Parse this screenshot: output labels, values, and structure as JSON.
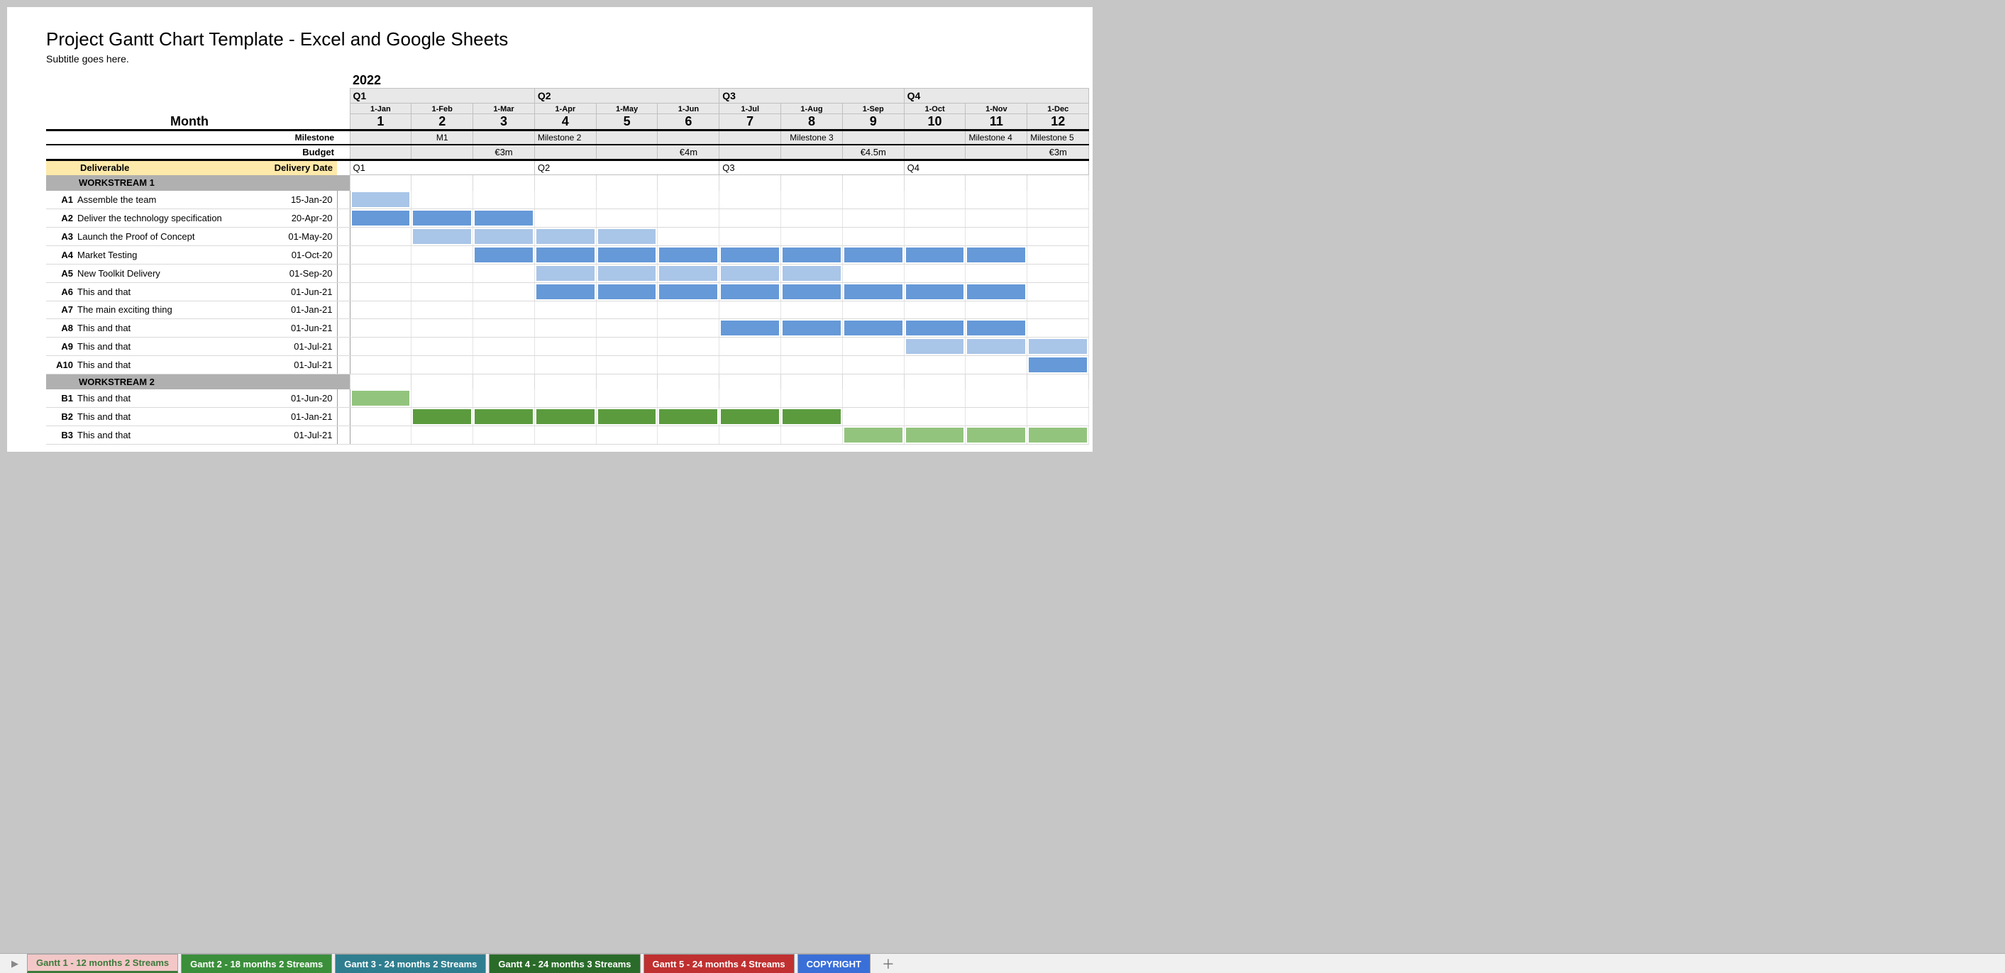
{
  "title": "Project Gantt Chart Template - Excel and Google Sheets",
  "subtitle": "Subtitle goes here.",
  "year": "2022",
  "quarters": [
    "Q1",
    "Q2",
    "Q3",
    "Q4"
  ],
  "month_dates": [
    "1-Jan",
    "1-Feb",
    "1-Mar",
    "1-Apr",
    "1-May",
    "1-Jun",
    "1-Jul",
    "1-Aug",
    "1-Sep",
    "1-Oct",
    "1-Nov",
    "1-Dec"
  ],
  "month_nums": [
    "1",
    "2",
    "3",
    "4",
    "5",
    "6",
    "7",
    "8",
    "9",
    "10",
    "11",
    "12"
  ],
  "labels": {
    "month": "Month",
    "milestone": "Milestone",
    "budget": "Budget",
    "deliverable": "Deliverable",
    "delivery_date": "Delivery Date"
  },
  "milestones": [
    "",
    "M1",
    "",
    "Milestone 2",
    "",
    "",
    "",
    "Milestone 3",
    "",
    "",
    "Milestone 4",
    "Milestone 5"
  ],
  "budget_vals": [
    "",
    "",
    "€3m",
    "",
    "",
    "€4m",
    "",
    "",
    "€4.5m",
    "",
    "",
    "€3m"
  ],
  "deliv_quarters": [
    "Q1",
    "Q2",
    "Q3",
    "Q4"
  ],
  "colors": {
    "blue_dark": "#6699d8",
    "blue_light": "#a9c5e8",
    "green_dark": "#5b9b3e",
    "green_light": "#93c47d",
    "grey_header": "#b0b0b0",
    "yellow": "#fde9a9"
  },
  "workstreams": [
    {
      "name": "WORKSTREAM 1",
      "tasks": [
        {
          "code": "A1",
          "name": "Assemble the team",
          "date": "15-Jan-20",
          "bars": [
            {
              "m": 1,
              "c": "blue_light"
            }
          ]
        },
        {
          "code": "A2",
          "name": "Deliver the technology specification",
          "date": "20-Apr-20",
          "bars": [
            {
              "m": 1,
              "c": "blue_dark"
            },
            {
              "m": 2,
              "c": "blue_dark"
            },
            {
              "m": 3,
              "c": "blue_dark"
            }
          ]
        },
        {
          "code": "A3",
          "name": "Launch the Proof of Concept",
          "date": "01-May-20",
          "bars": [
            {
              "m": 2,
              "c": "blue_light"
            },
            {
              "m": 3,
              "c": "blue_light"
            },
            {
              "m": 4,
              "c": "blue_light"
            },
            {
              "m": 5,
              "c": "blue_light"
            }
          ]
        },
        {
          "code": "A4",
          "name": "Market Testing",
          "date": "01-Oct-20",
          "bars": [
            {
              "m": 3,
              "c": "blue_dark"
            },
            {
              "m": 4,
              "c": "blue_dark"
            },
            {
              "m": 5,
              "c": "blue_dark"
            },
            {
              "m": 6,
              "c": "blue_dark"
            },
            {
              "m": 7,
              "c": "blue_dark"
            },
            {
              "m": 8,
              "c": "blue_dark"
            },
            {
              "m": 9,
              "c": "blue_dark"
            },
            {
              "m": 10,
              "c": "blue_dark"
            },
            {
              "m": 11,
              "c": "blue_dark"
            }
          ]
        },
        {
          "code": "A5",
          "name": "New Toolkit Delivery",
          "date": "01-Sep-20",
          "bars": [
            {
              "m": 4,
              "c": "blue_light"
            },
            {
              "m": 5,
              "c": "blue_light"
            },
            {
              "m": 6,
              "c": "blue_light"
            },
            {
              "m": 7,
              "c": "blue_light"
            },
            {
              "m": 8,
              "c": "blue_light"
            }
          ]
        },
        {
          "code": "A6",
          "name": "This and that",
          "date": "01-Jun-21",
          "bars": [
            {
              "m": 4,
              "c": "blue_dark"
            },
            {
              "m": 5,
              "c": "blue_dark"
            },
            {
              "m": 6,
              "c": "blue_dark"
            },
            {
              "m": 7,
              "c": "blue_dark"
            },
            {
              "m": 8,
              "c": "blue_dark"
            },
            {
              "m": 9,
              "c": "blue_dark"
            },
            {
              "m": 10,
              "c": "blue_dark"
            },
            {
              "m": 11,
              "c": "blue_dark"
            }
          ]
        },
        {
          "code": "A7",
          "name": "The main exciting thing",
          "date": "01-Jan-21",
          "bars": []
        },
        {
          "code": "A8",
          "name": "This and that",
          "date": "01-Jun-21",
          "bars": [
            {
              "m": 7,
              "c": "blue_dark"
            },
            {
              "m": 8,
              "c": "blue_dark"
            },
            {
              "m": 9,
              "c": "blue_dark"
            },
            {
              "m": 10,
              "c": "blue_dark"
            },
            {
              "m": 11,
              "c": "blue_dark"
            }
          ]
        },
        {
          "code": "A9",
          "name": "This and that",
          "date": "01-Jul-21",
          "bars": [
            {
              "m": 10,
              "c": "blue_light"
            },
            {
              "m": 11,
              "c": "blue_light"
            },
            {
              "m": 12,
              "c": "blue_light"
            }
          ]
        },
        {
          "code": "A10",
          "name": "This and that",
          "date": "01-Jul-21",
          "bars": [
            {
              "m": 12,
              "c": "blue_dark"
            }
          ]
        }
      ]
    },
    {
      "name": "WORKSTREAM 2",
      "tasks": [
        {
          "code": "B1",
          "name": "This and that",
          "date": "01-Jun-20",
          "bars": [
            {
              "m": 1,
              "c": "green_light"
            }
          ]
        },
        {
          "code": "B2",
          "name": "This and that",
          "date": "01-Jan-21",
          "bars": [
            {
              "m": 2,
              "c": "green_dark"
            },
            {
              "m": 3,
              "c": "green_dark"
            },
            {
              "m": 4,
              "c": "green_dark"
            },
            {
              "m": 5,
              "c": "green_dark"
            },
            {
              "m": 6,
              "c": "green_dark"
            },
            {
              "m": 7,
              "c": "green_dark"
            },
            {
              "m": 8,
              "c": "green_dark"
            }
          ]
        },
        {
          "code": "B3",
          "name": "This and that",
          "date": "01-Jul-21",
          "bars": [
            {
              "m": 9,
              "c": "green_light"
            },
            {
              "m": 10,
              "c": "green_light"
            },
            {
              "m": 11,
              "c": "green_light"
            },
            {
              "m": 12,
              "c": "green_light"
            }
          ]
        }
      ]
    }
  ],
  "tabs": [
    {
      "label": "Gantt 1 - 12 months  2 Streams",
      "bg": "#f3c7c7",
      "fg": "#3b7a3b",
      "active": true
    },
    {
      "label": "Gantt 2 - 18 months 2 Streams",
      "bg": "#3b8f3b",
      "fg": "#ffffff",
      "active": false
    },
    {
      "label": "Gantt 3 - 24 months 2 Streams",
      "bg": "#2f7e8f",
      "fg": "#ffffff",
      "active": false
    },
    {
      "label": "Gantt 4 - 24 months 3 Streams",
      "bg": "#2a6b2a",
      "fg": "#ffffff",
      "active": false
    },
    {
      "label": "Gantt 5 - 24 months 4 Streams",
      "bg": "#c03030",
      "fg": "#ffffff",
      "active": false
    },
    {
      "label": "COPYRIGHT",
      "bg": "#3a6fd8",
      "fg": "#ffffff",
      "active": false
    }
  ]
}
